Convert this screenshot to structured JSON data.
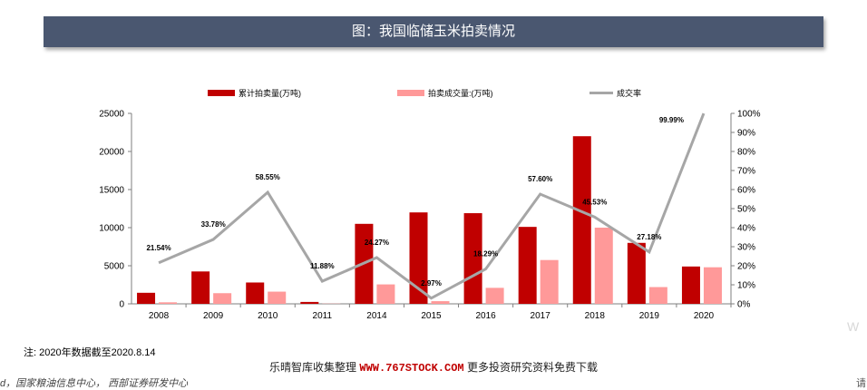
{
  "title": "图：我国临储玉米拍卖情况",
  "legend": {
    "items": [
      {
        "label": "累计拍卖量(万吨)",
        "color": "#c00000"
      },
      {
        "label": "拍卖成交量:(万吨)",
        "color": "#ff9999"
      },
      {
        "label": "成交率",
        "color": "#a6a6a6"
      }
    ]
  },
  "chart_data": {
    "type": "bar",
    "categories": [
      "2008",
      "2009",
      "2010",
      "2011",
      "2014",
      "2015",
      "2016",
      "2017",
      "2018",
      "2019",
      "2020"
    ],
    "series": [
      {
        "name": "累计拍卖量(万吨)",
        "type": "bar",
        "axis": "left",
        "color": "#c00000",
        "values": [
          1450,
          4250,
          2800,
          250,
          10500,
          12000,
          11900,
          10100,
          22000,
          8000,
          4900
        ]
      },
      {
        "name": "拍卖成交量:(万吨)",
        "type": "bar",
        "axis": "left",
        "color": "#ff9999",
        "values": [
          200,
          1400,
          1600,
          30,
          2550,
          350,
          2100,
          5750,
          10000,
          2200,
          4800
        ]
      },
      {
        "name": "成交率",
        "type": "line",
        "axis": "right",
        "color": "#a6a6a6",
        "values": [
          21.54,
          33.78,
          58.55,
          11.88,
          24.27,
          2.97,
          18.29,
          57.6,
          45.53,
          27.18,
          99.99
        ],
        "labels": [
          "21.54%",
          "33.78%",
          "58.55%",
          "11.88%",
          "24.27%",
          "2.97%",
          "18.29%",
          "57.60%",
          "45.53%",
          "27.18%",
          "99.99%"
        ]
      }
    ],
    "y_left": {
      "min": 0,
      "max": 25000,
      "ticks": [
        "0",
        "5000",
        "10000",
        "15000",
        "20000",
        "25000"
      ]
    },
    "y_right": {
      "min": 0,
      "max": 100,
      "ticks": [
        "0%",
        "10%",
        "20%",
        "30%",
        "40%",
        "50%",
        "60%",
        "70%",
        "80%",
        "90%",
        "100%"
      ]
    },
    "legend_position": "top",
    "grid": false
  },
  "note": "注: 2020年数据截至2020.8.14",
  "watermark": {
    "prefix": "乐晴智库收集整理",
    "url": "WWW.767STOCK.COM",
    "suffix": "更多投资研究资料免费下载"
  },
  "source": "d，国家粮油信息中心， 西部证券研发中心",
  "edge_right_char": "请",
  "edge_mark_char": "W"
}
